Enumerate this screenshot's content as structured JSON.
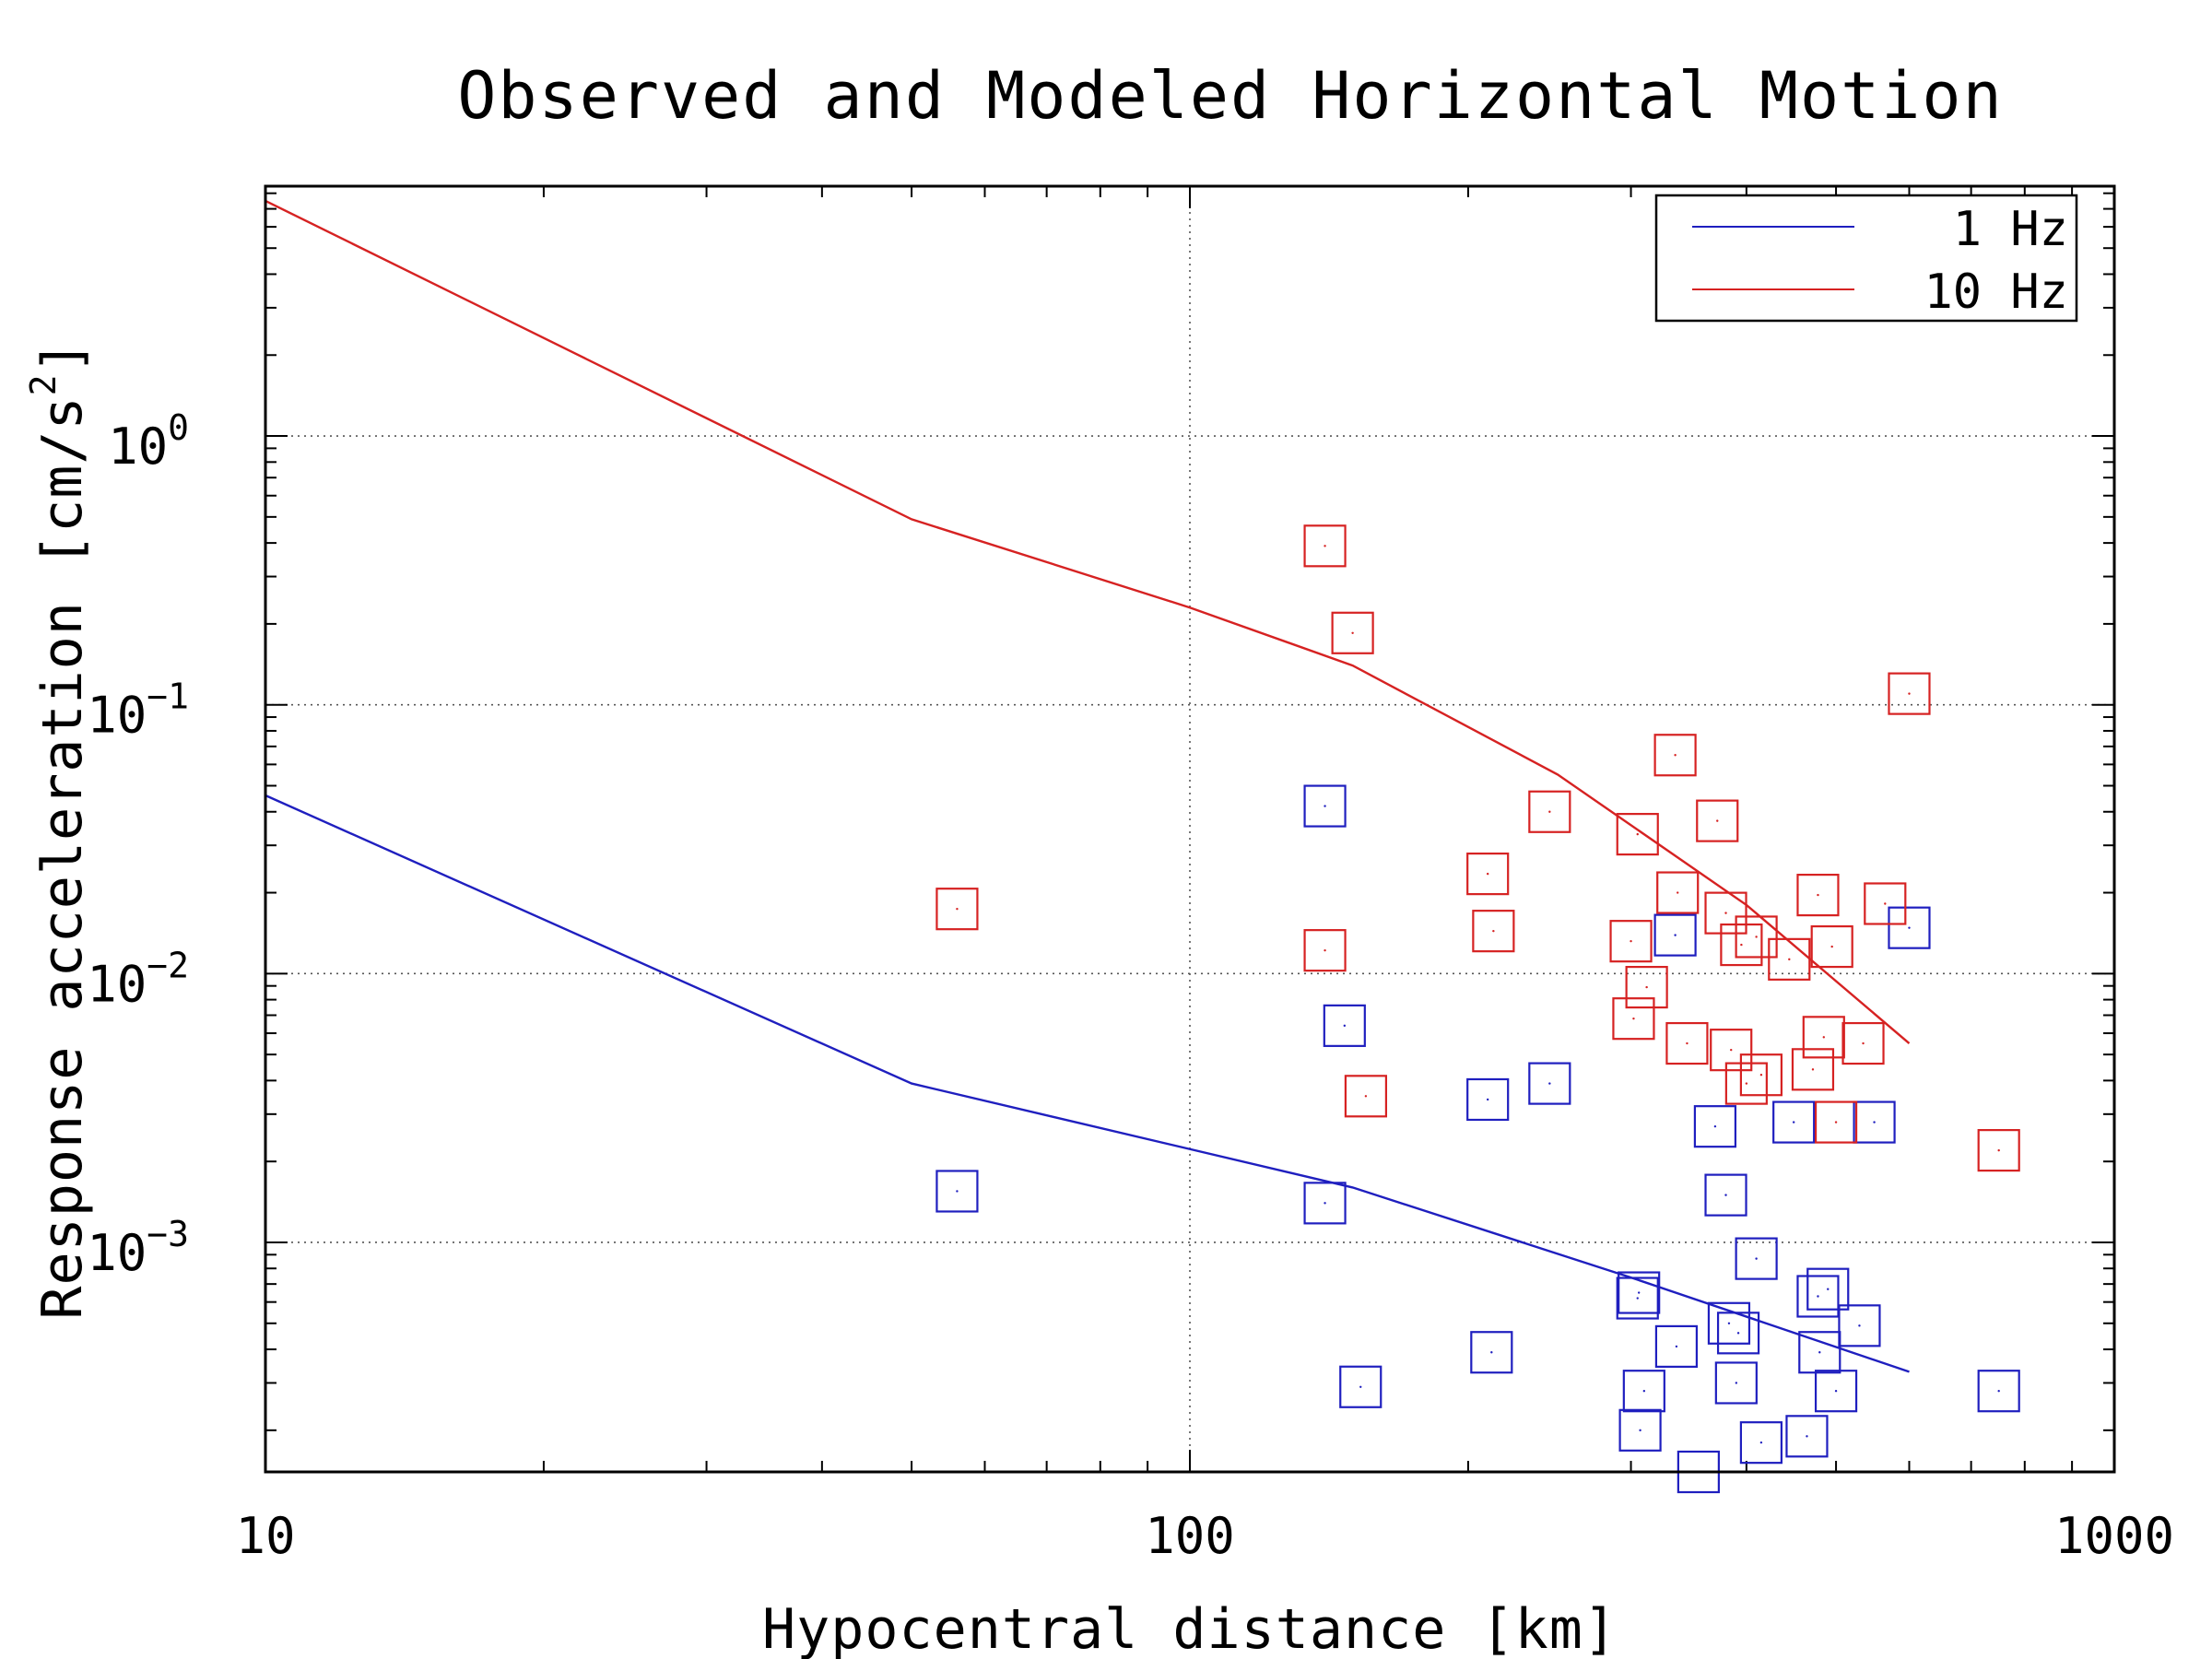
{
  "chart_data": {
    "type": "scatter",
    "title": "Observed and Modeled Horizontal Motion",
    "xlabel": "Hypocentral distance [km]",
    "ylabel": "Response acceleration [cm/s²]",
    "ylabel_parts": {
      "main": "Response acceleration [cm/s",
      "sup": "2",
      "close": "]"
    },
    "x_scale": "log",
    "y_scale": "log",
    "xlim": [
      10,
      1000
    ],
    "ylim": [
      0.00014,
      8.5
    ],
    "x_ticks": [
      {
        "value": 10,
        "label": "10"
      },
      {
        "value": 100,
        "label": "100"
      },
      {
        "value": 1000,
        "label": "1000"
      }
    ],
    "y_ticks": [
      {
        "value": 1,
        "base": "10",
        "exp": "0"
      },
      {
        "value": 0.1,
        "base": "10",
        "exp": "−1"
      },
      {
        "value": 0.01,
        "base": "10",
        "exp": "−2"
      },
      {
        "value": 0.001,
        "base": "10",
        "exp": "−3"
      }
    ],
    "grid": true,
    "legend_position": "top-right",
    "series": [
      {
        "name": "1 Hz",
        "color": "#1f1fbf",
        "model_line": [
          [
            10,
            0.046
          ],
          [
            50,
            0.0039
          ],
          [
            150,
            0.0016
          ],
          [
            300,
            0.00074
          ],
          [
            600,
            0.00033
          ]
        ],
        "observed": [
          [
            56,
            0.00155
          ],
          [
            140,
            0.042
          ],
          [
            140,
            0.0014
          ],
          [
            147,
            0.0064
          ],
          [
            153,
            0.00029
          ],
          [
            210,
            0.0034
          ],
          [
            212,
            0.00039
          ],
          [
            245,
            0.0039
          ],
          [
            305,
            0.00062
          ],
          [
            306,
            0.00065
          ],
          [
            307,
            0.0002
          ],
          [
            310,
            0.00028
          ],
          [
            335,
            0.0139
          ],
          [
            336,
            0.00041
          ],
          [
            355,
            0.00014
          ],
          [
            370,
            0.0027
          ],
          [
            380,
            0.0015
          ],
          [
            383,
            0.0005
          ],
          [
            390,
            0.0003
          ],
          [
            392,
            0.00046
          ],
          [
            410,
            0.00087
          ],
          [
            415,
            0.00018
          ],
          [
            450,
            0.0028
          ],
          [
            465,
            0.00019
          ],
          [
            478,
            0.00063
          ],
          [
            480,
            0.00039
          ],
          [
            490,
            0.00067
          ],
          [
            500,
            0.00028
          ],
          [
            530,
            0.00049
          ],
          [
            550,
            0.0028
          ],
          [
            600,
            0.0148
          ],
          [
            750,
            0.00028
          ]
        ]
      },
      {
        "name": "10 Hz",
        "color": "#d62222",
        "model_line": [
          [
            10,
            7.5
          ],
          [
            50,
            0.49
          ],
          [
            100,
            0.23
          ],
          [
            150,
            0.14
          ],
          [
            250,
            0.055
          ],
          [
            400,
            0.018
          ],
          [
            600,
            0.0055
          ]
        ],
        "observed": [
          [
            56,
            0.0174
          ],
          [
            140,
            0.39
          ],
          [
            140,
            0.0122
          ],
          [
            150,
            0.185
          ],
          [
            155,
            0.0035
          ],
          [
            210,
            0.0235
          ],
          [
            213,
            0.0144
          ],
          [
            245,
            0.04
          ],
          [
            300,
            0.0132
          ],
          [
            302,
            0.0068
          ],
          [
            305,
            0.033
          ],
          [
            312,
            0.0089
          ],
          [
            335,
            0.065
          ],
          [
            337,
            0.02
          ],
          [
            345,
            0.0055
          ],
          [
            372,
            0.037
          ],
          [
            380,
            0.0168
          ],
          [
            385,
            0.0052
          ],
          [
            395,
            0.0128
          ],
          [
            400,
            0.0039
          ],
          [
            410,
            0.0137
          ],
          [
            415,
            0.0042
          ],
          [
            445,
            0.0113
          ],
          [
            472,
            0.0044
          ],
          [
            478,
            0.0196
          ],
          [
            485,
            0.0058
          ],
          [
            495,
            0.0126
          ],
          [
            500,
            0.0028
          ],
          [
            535,
            0.0055
          ],
          [
            565,
            0.0182
          ],
          [
            600,
            0.11
          ],
          [
            750,
            0.0022
          ]
        ]
      }
    ]
  }
}
